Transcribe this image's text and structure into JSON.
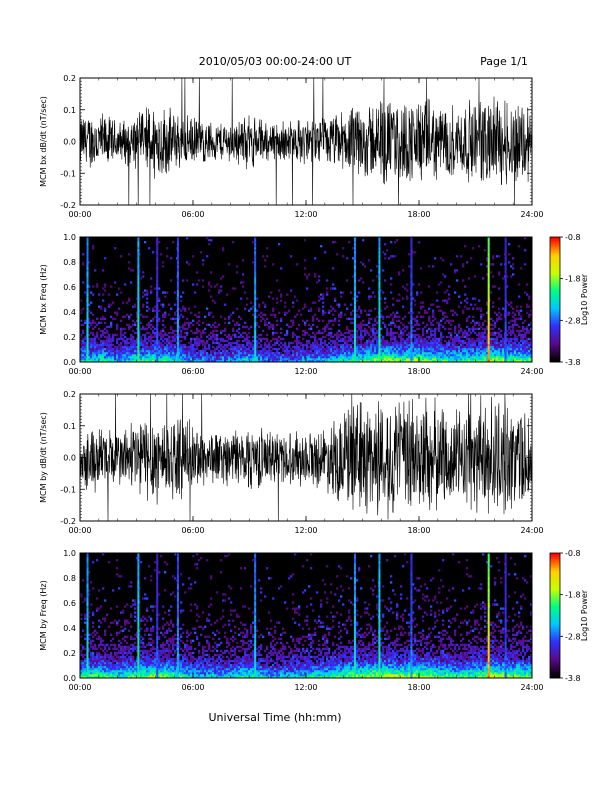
{
  "header": {
    "title": "2010/05/03  00:00-24:00 UT",
    "page": "Page 1/1"
  },
  "footer": {
    "xlabel": "Universal Time (hh:mm)"
  },
  "colors": {
    "trace": "#000000",
    "background": "#000000",
    "colormap": [
      "#000000",
      "#5a0a8a",
      "#3030ff",
      "#00c8ff",
      "#00ff80",
      "#c8ff00",
      "#ffd000",
      "#ff0000"
    ]
  },
  "chart_data": [
    {
      "type": "line",
      "ylabel": "MCM bx dB/dt (nT/sec)",
      "ylim": [
        -0.2,
        0.2
      ],
      "yticks": [
        "0.2",
        "0.1",
        "0.0",
        "-0.1",
        "-0.2"
      ],
      "xlim": [
        0,
        24
      ],
      "xticks": [
        "00:00",
        "06:00",
        "12:00",
        "18:00",
        "24:00"
      ],
      "envelope_hours": [
        0,
        1,
        2,
        3,
        4,
        5,
        6,
        7,
        8,
        9,
        10,
        11,
        12,
        13,
        14,
        15,
        16,
        17,
        18,
        19,
        20,
        21,
        22,
        23,
        24
      ],
      "envelope_amplitude": [
        0.08,
        0.09,
        0.06,
        0.08,
        0.12,
        0.09,
        0.07,
        0.06,
        0.06,
        0.08,
        0.06,
        0.06,
        0.07,
        0.07,
        0.09,
        0.11,
        0.13,
        0.12,
        0.13,
        0.11,
        0.11,
        0.12,
        0.14,
        0.13,
        0.12
      ]
    },
    {
      "type": "heatmap",
      "ylabel": "MCM bx Freq (Hz)",
      "ylim": [
        0.0,
        1.0
      ],
      "yticks": [
        "1.0",
        "0.8",
        "0.6",
        "0.4",
        "0.2",
        "0.0"
      ],
      "xlim": [
        0,
        24
      ],
      "xticks": [
        "00:00",
        "06:00",
        "12:00",
        "18:00",
        "24:00"
      ],
      "colorbar": {
        "label": "Log10 Power",
        "range": [
          -3.8,
          -0.8
        ],
        "ticks": [
          "-0.8",
          "-1.8",
          "-2.8",
          "-3.8"
        ]
      },
      "activity_hours": [
        0,
        1,
        2,
        3,
        4,
        5,
        6,
        7,
        8,
        9,
        10,
        11,
        12,
        13,
        14,
        15,
        16,
        17,
        18,
        19,
        20,
        21,
        22,
        23,
        24
      ],
      "activity_level": [
        0.5,
        0.55,
        0.45,
        0.55,
        0.6,
        0.55,
        0.4,
        0.35,
        0.4,
        0.5,
        0.35,
        0.35,
        0.4,
        0.45,
        0.55,
        0.6,
        0.7,
        0.65,
        0.7,
        0.6,
        0.55,
        0.6,
        0.7,
        0.65,
        0.6
      ],
      "spike_times": [
        0.4,
        3.1,
        4.1,
        5.2,
        9.3,
        14.6,
        15.9,
        17.6,
        21.7,
        22.6
      ],
      "spike_strengths": [
        0.55,
        0.6,
        0.35,
        0.45,
        0.5,
        0.55,
        0.6,
        0.4,
        0.95,
        0.35
      ]
    },
    {
      "type": "line",
      "ylabel": "MCM by dB/dt (nT/sec)",
      "ylim": [
        -0.2,
        0.2
      ],
      "yticks": [
        "0.2",
        "0.1",
        "0.0",
        "-0.1",
        "-0.2"
      ],
      "xlim": [
        0,
        24
      ],
      "xticks": [
        "00:00",
        "06:00",
        "12:00",
        "18:00",
        "24:00"
      ],
      "envelope_hours": [
        0,
        1,
        2,
        3,
        4,
        5,
        6,
        7,
        8,
        9,
        10,
        11,
        12,
        13,
        14,
        15,
        16,
        17,
        18,
        19,
        20,
        21,
        22,
        23,
        24
      ],
      "envelope_amplitude": [
        0.09,
        0.1,
        0.08,
        0.12,
        0.14,
        0.12,
        0.1,
        0.08,
        0.08,
        0.1,
        0.08,
        0.08,
        0.08,
        0.09,
        0.15,
        0.17,
        0.18,
        0.17,
        0.19,
        0.16,
        0.14,
        0.16,
        0.18,
        0.16,
        0.15
      ]
    },
    {
      "type": "heatmap",
      "ylabel": "MCM by Freq (Hz)",
      "ylim": [
        0.0,
        1.0
      ],
      "yticks": [
        "1.0",
        "0.8",
        "0.6",
        "0.4",
        "0.2",
        "0.0"
      ],
      "xlim": [
        0,
        24
      ],
      "xticks": [
        "00:00",
        "06:00",
        "12:00",
        "18:00",
        "24:00"
      ],
      "colorbar": {
        "label": "Log10 Power",
        "range": [
          -3.8,
          -0.8
        ],
        "ticks": [
          "-0.8",
          "-1.8",
          "-2.8",
          "-3.8"
        ]
      },
      "activity_hours": [
        0,
        1,
        2,
        3,
        4,
        5,
        6,
        7,
        8,
        9,
        10,
        11,
        12,
        13,
        14,
        15,
        16,
        17,
        18,
        19,
        20,
        21,
        22,
        23,
        24
      ],
      "activity_level": [
        0.6,
        0.65,
        0.55,
        0.65,
        0.7,
        0.65,
        0.5,
        0.45,
        0.5,
        0.6,
        0.45,
        0.45,
        0.5,
        0.55,
        0.65,
        0.7,
        0.75,
        0.7,
        0.75,
        0.65,
        0.6,
        0.65,
        0.75,
        0.7,
        0.65
      ],
      "spike_times": [
        0.4,
        3.1,
        4.1,
        5.2,
        9.3,
        14.6,
        15.9,
        17.6,
        21.7,
        22.6
      ],
      "spike_strengths": [
        0.55,
        0.6,
        0.35,
        0.45,
        0.5,
        0.55,
        0.6,
        0.4,
        0.95,
        0.35
      ]
    }
  ]
}
